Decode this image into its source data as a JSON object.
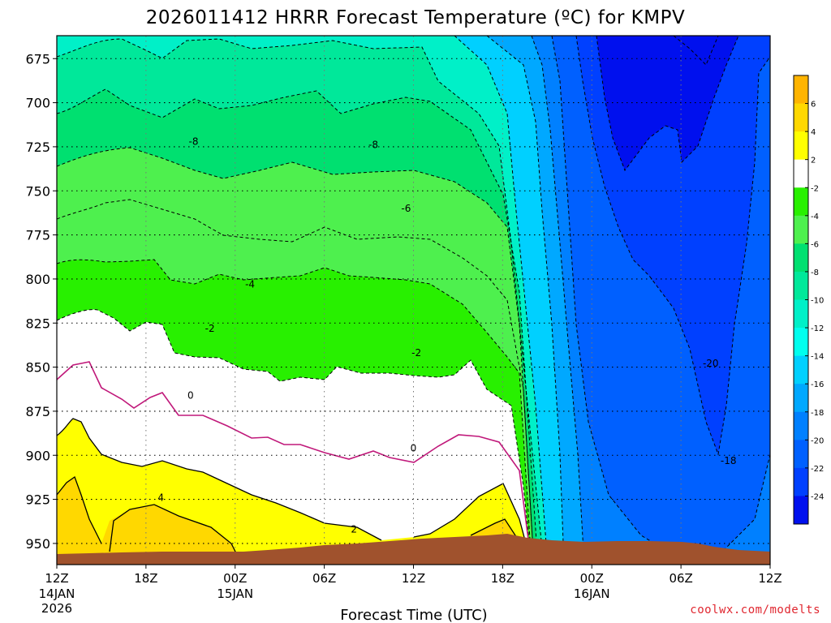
{
  "chart_data": {
    "type": "contour",
    "title": "2026011412 HRRR Forecast Temperature (ºC) for KMPV",
    "xlabel": "Forecast Time (UTC)",
    "credit": "coolwx.com/modelts",
    "y_axis": {
      "unit": "hPa",
      "range": [
        962,
        662
      ],
      "ticks": [
        "675",
        "700",
        "725",
        "750",
        "775",
        "800",
        "825",
        "850",
        "875",
        "900",
        "925",
        "950"
      ],
      "tick_values": [
        675,
        700,
        725,
        750,
        775,
        800,
        825,
        850,
        875,
        900,
        925,
        950
      ]
    },
    "x_axis": {
      "unit": "hours since 2026011412",
      "range": [
        0,
        48
      ],
      "ticks": [
        {
          "hour": 0,
          "label": "12Z",
          "date": "14JAN",
          "year": "2026"
        },
        {
          "hour": 6,
          "label": "18Z",
          "date": "",
          "year": ""
        },
        {
          "hour": 12,
          "label": "00Z",
          "date": "15JAN",
          "year": ""
        },
        {
          "hour": 18,
          "label": "06Z",
          "date": "",
          "year": ""
        },
        {
          "hour": 24,
          "label": "12Z",
          "date": "",
          "year": ""
        },
        {
          "hour": 30,
          "label": "18Z",
          "date": "",
          "year": ""
        },
        {
          "hour": 36,
          "label": "00Z",
          "date": "16JAN",
          "year": ""
        },
        {
          "hour": 42,
          "label": "06Z",
          "date": "",
          "year": ""
        },
        {
          "hour": 48,
          "label": "12Z",
          "date": "",
          "year": ""
        }
      ]
    },
    "colorbar": {
      "unit": "ºC",
      "labels": [
        "6",
        "4",
        "2",
        "-2",
        "-4",
        "-6",
        "-8",
        "-10",
        "-12",
        "-14",
        "-16",
        "-18",
        "-20",
        "-22",
        "-24"
      ],
      "colors": [
        "#ffb400",
        "#ffd800",
        "#ffff00",
        "#ffffff",
        "#28f000",
        "#4ef04e",
        "#00e070",
        "#00e89a",
        "#00f0c8",
        "#00ffee",
        "#00d0ff",
        "#00a8ff",
        "#0080ff",
        "#0060ff",
        "#0040ff",
        "#0010ee"
      ]
    },
    "contour_labels": [
      {
        "text": "-8",
        "hour": 9.2,
        "p": 722
      },
      {
        "text": "-8",
        "hour": 21.3,
        "p": 724
      },
      {
        "text": "-6",
        "hour": 23.5,
        "p": 760
      },
      {
        "text": "-4",
        "hour": 13.0,
        "p": 803
      },
      {
        "text": "-2",
        "hour": 10.3,
        "p": 828
      },
      {
        "text": "-2",
        "hour": 24.2,
        "p": 842
      },
      {
        "text": "0",
        "hour": 9.0,
        "p": 866
      },
      {
        "text": "0",
        "hour": 24.0,
        "p": 896
      },
      {
        "text": "2",
        "hour": 20.0,
        "p": 942
      },
      {
        "text": "4",
        "hour": 7.0,
        "p": 924
      },
      {
        "text": "-20",
        "hour": 44.0,
        "p": 848
      },
      {
        "text": "-18",
        "hour": 45.2,
        "p": 903
      }
    ]
  }
}
